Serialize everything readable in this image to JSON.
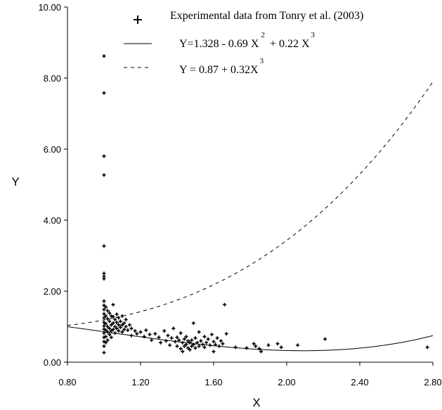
{
  "chart_data": {
    "type": "scatter",
    "xlabel": "X",
    "ylabel": "Y",
    "xlim": [
      0.8,
      2.8
    ],
    "ylim": [
      0.0,
      10.0
    ],
    "x_ticks": [
      "0.80",
      "1.20",
      "1.60",
      "2.00",
      "2.40",
      "2.80"
    ],
    "y_ticks": [
      "0.00",
      "2.00",
      "4.00",
      "6.00",
      "8.00",
      "10.00"
    ],
    "grid": false,
    "legend_position": "top-right",
    "legend": [
      {
        "marker": "+",
        "text": "Experimental data from Tonry et al. (2003)"
      },
      {
        "style": "solid",
        "text": "Y=1.328 - 0.69 X",
        "sup1": "2",
        "text2": " + 0.22 X",
        "sup2": "3"
      },
      {
        "style": "dashed",
        "text": "Y = 0.87 + 0.32X",
        "sup1": "3"
      }
    ],
    "curves": [
      {
        "style": "solid",
        "formula": "Y=1.328 - 0.69 X^2 + 0.22 X^3",
        "coefficients": {
          "c0": 1.328,
          "c2": -0.69,
          "c3": 0.22
        },
        "x_range": [
          0.8,
          2.8
        ]
      },
      {
        "style": "dashed",
        "formula": "Y = 0.87 + 0.32X^3",
        "coefficients": {
          "c0": 0.87,
          "c3": 0.32
        },
        "x_range": [
          0.8,
          2.8
        ]
      }
    ],
    "points": [
      [
        1.0,
        8.62
      ],
      [
        1.0,
        7.58
      ],
      [
        1.0,
        5.8
      ],
      [
        1.0,
        5.27
      ],
      [
        1.0,
        3.27
      ],
      [
        1.0,
        2.5
      ],
      [
        1.0,
        2.42
      ],
      [
        1.0,
        2.35
      ],
      [
        1.0,
        1.72
      ],
      [
        1.0,
        1.6
      ],
      [
        1.0,
        1.48
      ],
      [
        1.0,
        1.36
      ],
      [
        1.0,
        1.25
      ],
      [
        1.0,
        1.12
      ],
      [
        1.0,
        1.02
      ],
      [
        1.0,
        0.93
      ],
      [
        1.0,
        0.82
      ],
      [
        1.0,
        0.7
      ],
      [
        1.0,
        0.58
      ],
      [
        1.0,
        0.45
      ],
      [
        1.0,
        0.27
      ],
      [
        1.01,
        1.55
      ],
      [
        1.01,
        1.3
      ],
      [
        1.01,
        1.08
      ],
      [
        1.01,
        0.9
      ],
      [
        1.01,
        0.72
      ],
      [
        1.01,
        0.55
      ],
      [
        1.02,
        1.45
      ],
      [
        1.02,
        1.22
      ],
      [
        1.02,
        1.0
      ],
      [
        1.02,
        0.85
      ],
      [
        1.02,
        0.62
      ],
      [
        1.03,
        1.38
      ],
      [
        1.03,
        1.15
      ],
      [
        1.03,
        0.95
      ],
      [
        1.03,
        0.78
      ],
      [
        1.04,
        1.3
      ],
      [
        1.04,
        1.05
      ],
      [
        1.04,
        0.88
      ],
      [
        1.04,
        0.7
      ],
      [
        1.05,
        1.62
      ],
      [
        1.05,
        1.28
      ],
      [
        1.05,
        1.1
      ],
      [
        1.05,
        0.92
      ],
      [
        1.06,
        1.2
      ],
      [
        1.06,
        1.0
      ],
      [
        1.06,
        0.82
      ],
      [
        1.07,
        1.35
      ],
      [
        1.07,
        1.12
      ],
      [
        1.07,
        0.95
      ],
      [
        1.08,
        1.25
      ],
      [
        1.08,
        1.05
      ],
      [
        1.08,
        0.88
      ],
      [
        1.09,
        1.15
      ],
      [
        1.09,
        0.98
      ],
      [
        1.1,
        1.3
      ],
      [
        1.1,
        1.05
      ],
      [
        1.1,
        0.85
      ],
      [
        1.11,
        1.1
      ],
      [
        1.11,
        0.92
      ],
      [
        1.12,
        1.2
      ],
      [
        1.12,
        1.0
      ],
      [
        1.13,
        0.9
      ],
      [
        1.14,
        1.05
      ],
      [
        1.15,
        0.95
      ],
      [
        1.15,
        0.75
      ],
      [
        1.17,
        0.88
      ],
      [
        1.18,
        0.8
      ],
      [
        1.2,
        0.85
      ],
      [
        1.22,
        0.72
      ],
      [
        1.23,
        0.9
      ],
      [
        1.25,
        0.78
      ],
      [
        1.26,
        0.62
      ],
      [
        1.28,
        0.8
      ],
      [
        1.3,
        0.7
      ],
      [
        1.31,
        0.55
      ],
      [
        1.33,
        0.88
      ],
      [
        1.34,
        0.6
      ],
      [
        1.35,
        0.75
      ],
      [
        1.36,
        0.48
      ],
      [
        1.37,
        0.68
      ],
      [
        1.38,
        0.95
      ],
      [
        1.39,
        0.58
      ],
      [
        1.4,
        0.7
      ],
      [
        1.4,
        0.45
      ],
      [
        1.41,
        0.62
      ],
      [
        1.42,
        0.38
      ],
      [
        1.42,
        0.82
      ],
      [
        1.43,
        0.55
      ],
      [
        1.43,
        0.3
      ],
      [
        1.44,
        0.65
      ],
      [
        1.44,
        0.45
      ],
      [
        1.45,
        0.72
      ],
      [
        1.45,
        0.5
      ],
      [
        1.46,
        0.4
      ],
      [
        1.46,
        0.6
      ],
      [
        1.47,
        0.55
      ],
      [
        1.47,
        0.35
      ],
      [
        1.48,
        0.62
      ],
      [
        1.48,
        0.45
      ],
      [
        1.49,
        0.5
      ],
      [
        1.49,
        1.1
      ],
      [
        1.5,
        0.68
      ],
      [
        1.5,
        0.4
      ],
      [
        1.51,
        0.55
      ],
      [
        1.52,
        0.45
      ],
      [
        1.52,
        0.85
      ],
      [
        1.53,
        0.6
      ],
      [
        1.54,
        0.5
      ],
      [
        1.55,
        0.72
      ],
      [
        1.55,
        0.42
      ],
      [
        1.56,
        0.55
      ],
      [
        1.57,
        0.65
      ],
      [
        1.58,
        0.48
      ],
      [
        1.59,
        0.78
      ],
      [
        1.6,
        0.58
      ],
      [
        1.6,
        0.3
      ],
      [
        1.61,
        0.5
      ],
      [
        1.62,
        0.68
      ],
      [
        1.63,
        0.45
      ],
      [
        1.64,
        0.6
      ],
      [
        1.65,
        0.52
      ],
      [
        1.66,
        1.62
      ],
      [
        1.67,
        0.8
      ],
      [
        1.72,
        0.42
      ],
      [
        1.78,
        0.4
      ],
      [
        1.82,
        0.52
      ],
      [
        1.83,
        0.45
      ],
      [
        1.85,
        0.38
      ],
      [
        1.86,
        0.3
      ],
      [
        1.9,
        0.48
      ],
      [
        1.95,
        0.52
      ],
      [
        1.97,
        0.42
      ],
      [
        2.06,
        0.48
      ],
      [
        2.21,
        0.65
      ],
      [
        2.77,
        0.42
      ]
    ]
  }
}
